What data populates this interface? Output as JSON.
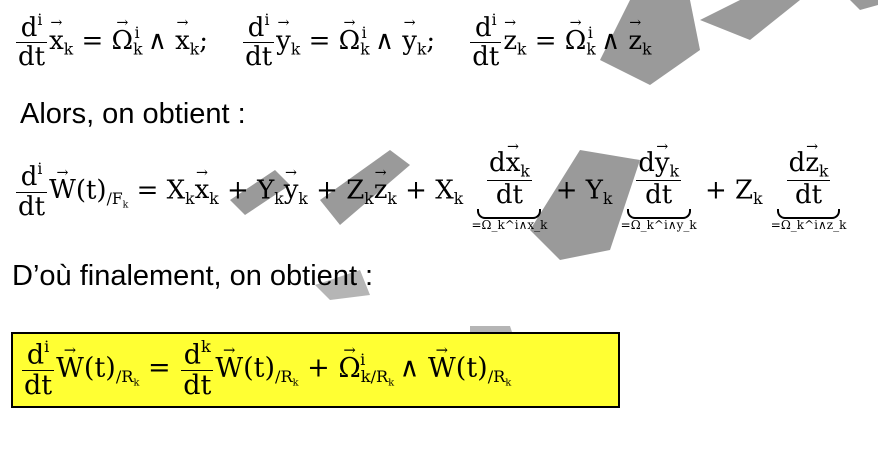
{
  "eq_line1": {
    "x_eq": "d/dt x_k = Ω_k ∧ x_k;",
    "y_eq": "d/dt y_k = Ω_k ∧ y_k;",
    "z_eq": "d/dt z_k = Ω_k ∧ z_k"
  },
  "text1": "Alors, on obtient :",
  "text2": "D’où finalement, on obtient :",
  "symbols": {
    "d": "d",
    "dt": "dt",
    "i": "i",
    "k": "k",
    "x": "x",
    "y": "y",
    "z": "z",
    "Omega": "Ω",
    "W": "W",
    "t": "(t)",
    "Fk": "/F",
    "Rk": "/R",
    "X": "X",
    "Y": "Y",
    "Z": "Z",
    "wedge": "∧",
    "eq": "=",
    "plus": "+",
    "semi": ";"
  },
  "underbrace_labels": {
    "x": "=Ω_k^i∧x_k",
    "y": "=Ω_k^i∧y_k",
    "z": "=Ω_k^i∧z_k"
  },
  "colors": {
    "highlight": "#ffff33",
    "watermark": "#9a9a9a"
  }
}
